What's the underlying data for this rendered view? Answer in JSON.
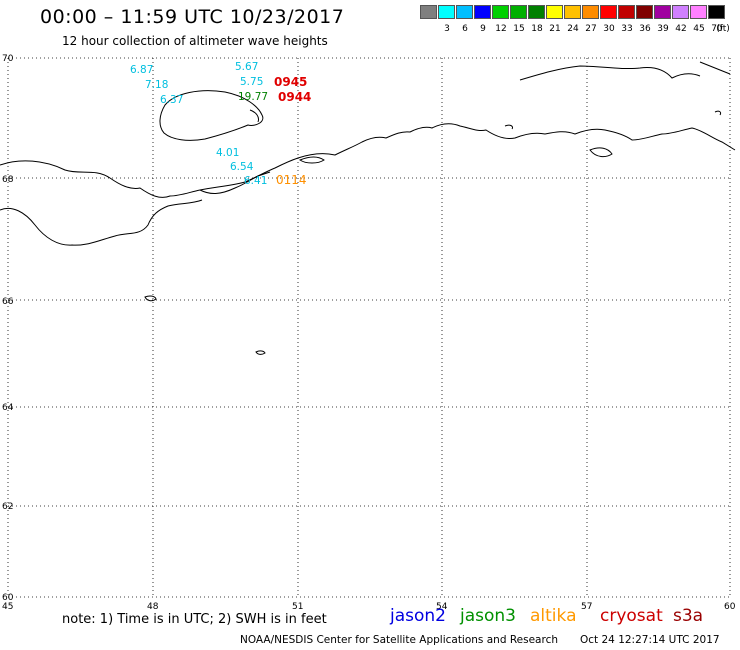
{
  "header": {
    "title": "00:00 – 11:59 UTC 10/23/2017",
    "subtitle": "12 hour collection of altimeter wave heights"
  },
  "legend": {
    "unit": "(ft)",
    "items": [
      {
        "label": "",
        "color": "#7f7f7f"
      },
      {
        "label": "3",
        "color": "#00ffff"
      },
      {
        "label": "6",
        "color": "#00bfff"
      },
      {
        "label": "9",
        "color": "#0000ff"
      },
      {
        "label": "12",
        "color": "#00d000"
      },
      {
        "label": "15",
        "color": "#00b000"
      },
      {
        "label": "18",
        "color": "#008000"
      },
      {
        "label": "21",
        "color": "#ffff00"
      },
      {
        "label": "24",
        "color": "#ffc000"
      },
      {
        "label": "27",
        "color": "#ff8c00"
      },
      {
        "label": "30",
        "color": "#ff0000"
      },
      {
        "label": "33",
        "color": "#c00000"
      },
      {
        "label": "36",
        "color": "#800000"
      },
      {
        "label": "39",
        "color": "#a000a0"
      },
      {
        "label": "42",
        "color": "#d080ff"
      },
      {
        "label": "45",
        "color": "#ff80ff"
      },
      {
        "label": "70",
        "color": "#000000"
      }
    ]
  },
  "axes": {
    "lat_labels": [
      "70",
      "68",
      "66",
      "64",
      "62",
      "60"
    ],
    "lon_labels": [
      "45",
      "48",
      "51",
      "54",
      "57",
      "60"
    ],
    "lat_range": [
      60,
      70
    ],
    "lon_range": [
      45,
      60
    ],
    "grid": "dotted"
  },
  "observations": [
    {
      "text": "6.87",
      "color": "#00bfdf"
    },
    {
      "text": "7.18",
      "color": "#00bfdf"
    },
    {
      "text": "6.37",
      "color": "#00bfdf"
    },
    {
      "text": "5.67",
      "color": "#00bfdf"
    },
    {
      "text": "5.75",
      "color": "#00bfdf"
    },
    {
      "text": "19.77",
      "color": "#008000"
    },
    {
      "text": "4.01",
      "color": "#00bfdf"
    },
    {
      "text": "6.54",
      "color": "#00bfdf"
    },
    {
      "text": "6.41",
      "color": "#00bfdf"
    }
  ],
  "pass_times": [
    {
      "text": "0945",
      "color": "#e00000"
    },
    {
      "text": "0944",
      "color": "#e00000"
    },
    {
      "text": "0114",
      "color": "#ff9000"
    }
  ],
  "footer": {
    "note": "note: 1) Time is in UTC; 2) SWH is in feet",
    "satellites": [
      {
        "name": "jason2",
        "color": "#0000e0"
      },
      {
        "name": "jason3",
        "color": "#009000"
      },
      {
        "name": "altika",
        "color": "#ff9900"
      },
      {
        "name": "cryosat",
        "color": "#cc0000"
      },
      {
        "name": "s3a",
        "color": "#990000"
      }
    ],
    "credit": "NOAA/NESDIS Center for Satellite Applications and Research",
    "generated": "Oct 24 12:27:14 UTC 2017"
  }
}
